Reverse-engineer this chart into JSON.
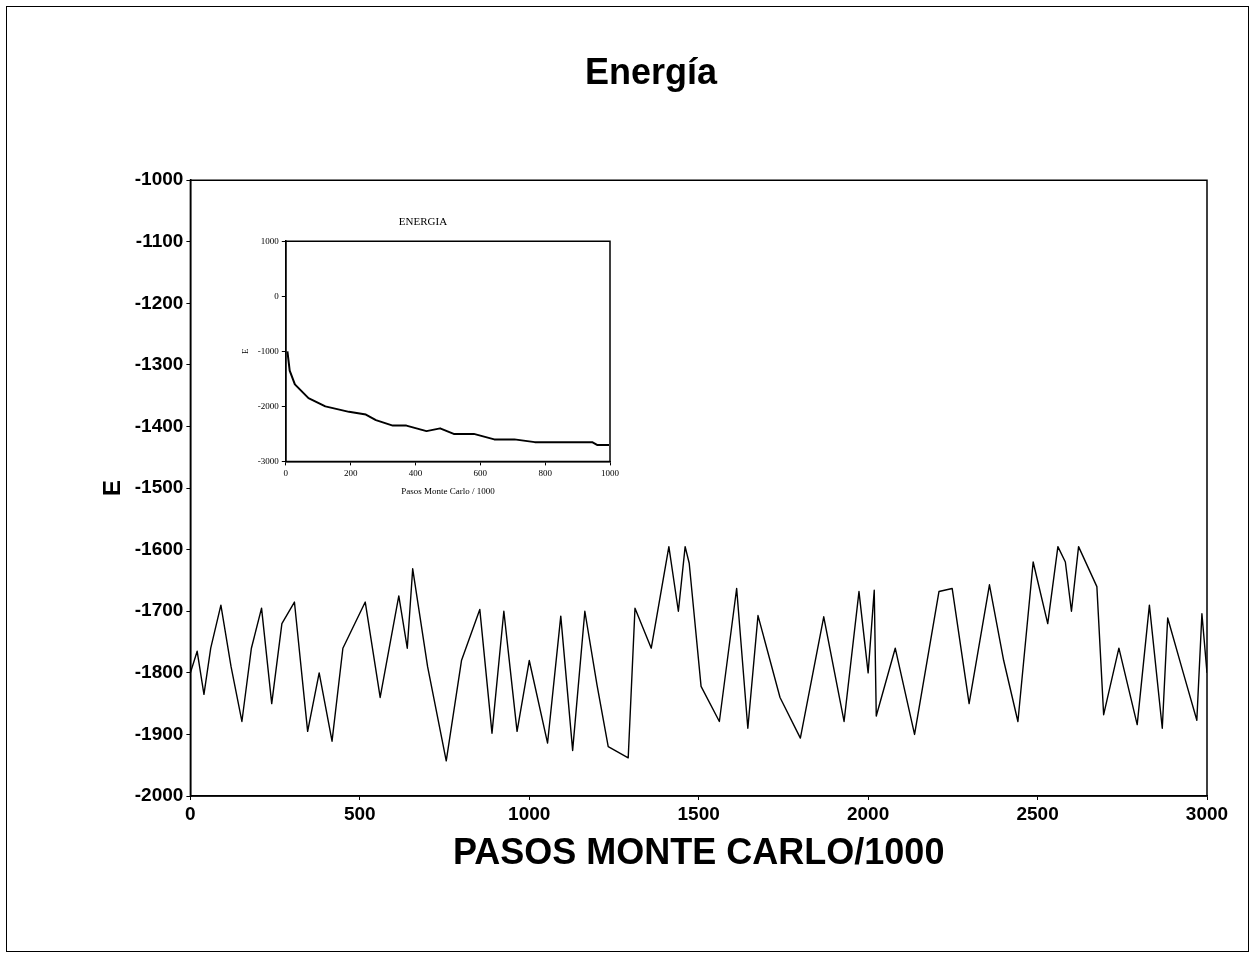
{
  "chart_data": [
    {
      "type": "line",
      "title": "Energía",
      "xlabel": "PASOS MONTE CARLO/1000",
      "ylabel": "E",
      "x": [
        0,
        20,
        40,
        60,
        90,
        120,
        152,
        180,
        210,
        240,
        270,
        307,
        346,
        380,
        418,
        450,
        516,
        560,
        615,
        640,
        656,
        700,
        755,
        800,
        854,
        890,
        925,
        964,
        1000,
        1054,
        1093,
        1128,
        1164,
        1200,
        1233,
        1292,
        1312,
        1360,
        1412,
        1440,
        1460,
        1472,
        1507,
        1561,
        1612,
        1645,
        1675,
        1740,
        1800,
        1869,
        1929,
        1973,
        2000,
        2018,
        2024,
        2080,
        2137,
        2209,
        2248,
        2298,
        2358,
        2400,
        2442,
        2487,
        2530,
        2560,
        2582,
        2600,
        2621,
        2675,
        2695,
        2740,
        2794,
        2830,
        2868,
        2884,
        2930,
        2970,
        2985,
        3000
      ],
      "series": [
        {
          "color": "#000000",
          "values": [
            -1800,
            -1765,
            -1835,
            -1760,
            -1690,
            -1790,
            -1879,
            -1760,
            -1695,
            -1850,
            -1720,
            -1685,
            -1895,
            -1800,
            -1911,
            -1760,
            -1685,
            -1840,
            -1675,
            -1760,
            -1631,
            -1790,
            -1943,
            -1780,
            -1697,
            -1898,
            -1700,
            -1895,
            -1780,
            -1914,
            -1708,
            -1926,
            -1700,
            -1820,
            -1920,
            -1938,
            -1695,
            -1760,
            -1595,
            -1700,
            -1595,
            -1622,
            -1822,
            -1879,
            -1663,
            -1890,
            -1707,
            -1840,
            -1906,
            -1709,
            -1879,
            -1668,
            -1800,
            -1666,
            -1870,
            -1760,
            -1900,
            -1668,
            -1663,
            -1850,
            -1657,
            -1780,
            -1879,
            -1620,
            -1720,
            -1595,
            -1620,
            -1700,
            -1595,
            -1660,
            -1868,
            -1760,
            -1884,
            -1690,
            -1890,
            -1711,
            -1800,
            -1877,
            -1704,
            -1800
          ]
        }
      ],
      "xlim": [
        0,
        3000
      ],
      "ylim": [
        -2000,
        -1000
      ],
      "xticks": [
        0,
        500,
        1000,
        1500,
        2000,
        2500,
        3000
      ],
      "yticks": [
        -2000,
        -1900,
        -1800,
        -1700,
        -1600,
        -1500,
        -1400,
        -1300,
        -1200,
        -1100,
        -1000
      ]
    },
    {
      "type": "line",
      "title": "ENERGIA",
      "xlabel": "Pasos Monte Carlo / 1000",
      "ylabel": "E",
      "x": [
        5,
        12,
        28,
        70,
        122,
        195,
        247,
        278,
        330,
        372,
        434,
        476,
        518,
        580,
        643,
        705,
        768,
        830,
        893,
        945,
        960,
        997
      ],
      "series": [
        {
          "color": "#000000",
          "values": [
            -1000,
            -1350,
            -1600,
            -1850,
            -2000,
            -2100,
            -2150,
            -2250,
            -2350,
            -2350,
            -2450,
            -2400,
            -2500,
            -2500,
            -2600,
            -2600,
            -2650,
            -2650,
            -2650,
            -2650,
            -2700,
            -2700
          ]
        }
      ],
      "xlim": [
        0,
        1000
      ],
      "ylim": [
        -3000,
        1000
      ],
      "xticks": [
        0,
        200,
        400,
        600,
        800,
        1000
      ],
      "yticks": [
        -3000,
        -2000,
        -1000,
        0,
        1000
      ]
    }
  ]
}
